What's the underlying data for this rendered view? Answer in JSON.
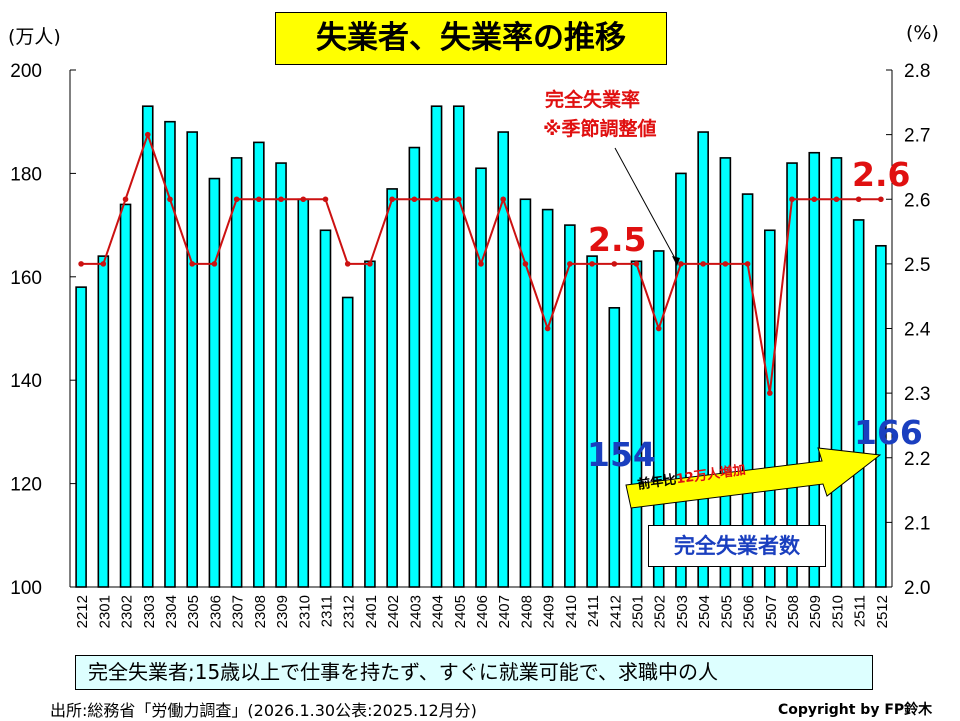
{
  "title": "失業者、失業率の推移",
  "left_unit": "(万人)",
  "right_unit": "(%)",
  "rate_annotation": {
    "line1": "完全失業率",
    "line2": "※季節調整値"
  },
  "callouts": {
    "rate_low": "2.5",
    "rate_latest": "2.6",
    "count_low": "154",
    "count_latest": "166"
  },
  "arrow_label": {
    "prefix": "前年比",
    "highlight": "12万人増加"
  },
  "series_label": "完全失業者数",
  "definition": "完全失業者;15歳以上で仕事を持たず、すぐに就業可能で、求職中の人",
  "source": "出所:総務省「労働力調査」(2026.1.30公表:2025.12月分)",
  "copyright": "Copyright by FP鈴木",
  "colors": {
    "bar": "#00ffff",
    "line": "#cc1111",
    "title_bg": "#ffff00",
    "count_text": "#1a3fbf",
    "rate_text": "#e01010",
    "arrow": "#ffff00"
  },
  "chart_data": {
    "type": "bar+line",
    "title": "失業者、失業率の推移",
    "categories": [
      "2212",
      "2301",
      "2302",
      "2303",
      "2304",
      "2305",
      "2306",
      "2307",
      "2308",
      "2309",
      "2310",
      "2311",
      "2312",
      "2401",
      "2402",
      "2403",
      "2404",
      "2405",
      "2406",
      "2407",
      "2408",
      "2409",
      "2410",
      "2411",
      "2412",
      "2501",
      "2502",
      "2503",
      "2504",
      "2505",
      "2506",
      "2507",
      "2508",
      "2509",
      "2510",
      "2511",
      "2512"
    ],
    "series": [
      {
        "name": "完全失業者数",
        "axis": "left",
        "type": "bar",
        "values": [
          158,
          164,
          174,
          193,
          190,
          188,
          179,
          183,
          186,
          182,
          175,
          169,
          156,
          163,
          177,
          185,
          193,
          193,
          181,
          188,
          175,
          173,
          170,
          164,
          154,
          163,
          165,
          180,
          188,
          183,
          176,
          169,
          182,
          184,
          183,
          171,
          166
        ]
      },
      {
        "name": "完全失業率(季節調整値)",
        "axis": "right",
        "type": "line",
        "values": [
          2.5,
          2.5,
          2.6,
          2.7,
          2.6,
          2.5,
          2.5,
          2.6,
          2.6,
          2.6,
          2.6,
          2.6,
          2.5,
          2.5,
          2.6,
          2.6,
          2.6,
          2.6,
          2.5,
          2.6,
          2.5,
          2.4,
          2.5,
          2.5,
          2.5,
          2.5,
          2.4,
          2.5,
          2.5,
          2.5,
          2.5,
          2.3,
          2.6,
          2.6,
          2.6,
          2.6,
          2.6
        ]
      }
    ],
    "y_left": {
      "label": "(万人)",
      "range": [
        100,
        200
      ],
      "ticks": [
        "100",
        "120",
        "140",
        "160",
        "180",
        "200"
      ]
    },
    "y_right": {
      "label": "(%)",
      "range": [
        2.0,
        2.8
      ],
      "ticks": [
        "2.0",
        "2.1",
        "2.2",
        "2.3",
        "2.4",
        "2.5",
        "2.6",
        "2.7",
        "2.8"
      ]
    },
    "grid": false
  }
}
